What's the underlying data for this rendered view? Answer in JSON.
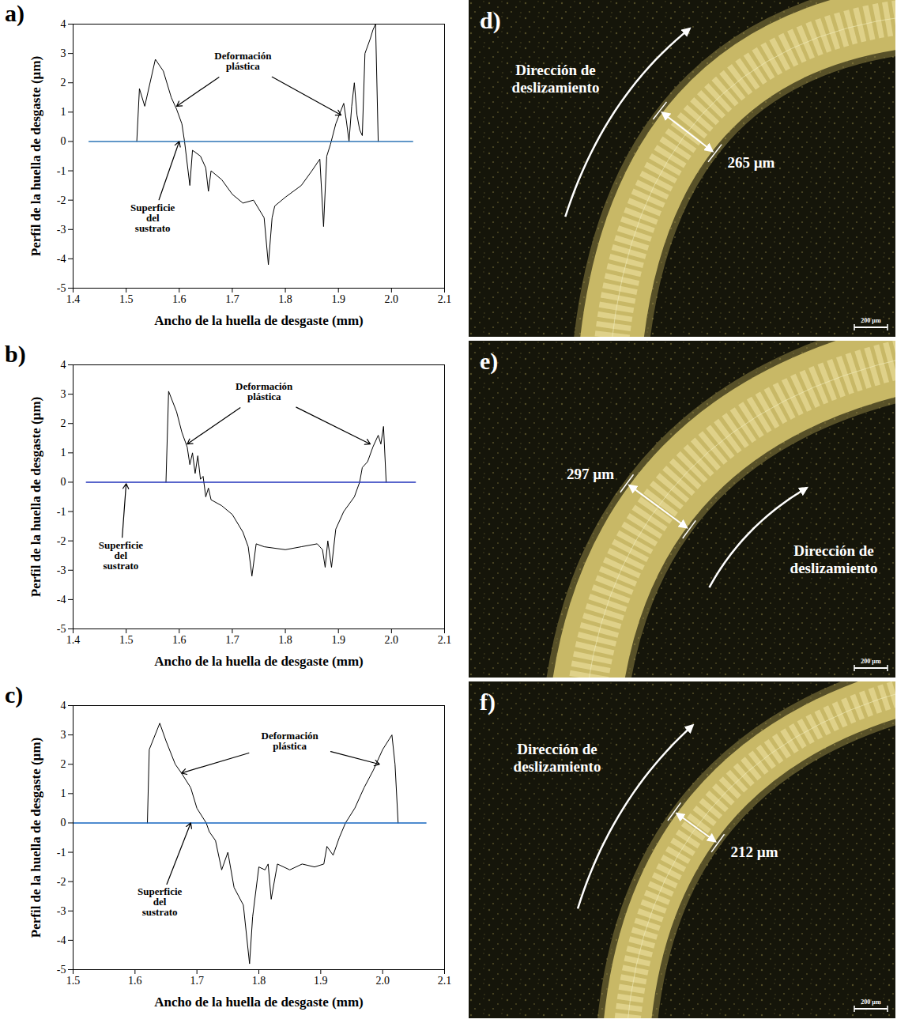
{
  "chart_data": [
    {
      "type": "line",
      "panel": "a)",
      "xlabel": "Ancho de la huella de desgaste (mm)",
      "ylabel": "Perfil de la huella de desgaste (µm)",
      "xlim": [
        1.4,
        2.1
      ],
      "xticks": [
        1.4,
        1.5,
        1.6,
        1.7,
        1.8,
        1.9,
        {
          "value": 2,
          "label": "2.0"
        },
        2.1
      ],
      "ylim": [
        -5,
        4
      ],
      "yticks": [
        -5,
        -4,
        -3,
        -2,
        -1,
        0,
        1,
        2,
        3,
        4
      ],
      "series": [
        {
          "color": "#000000",
          "line_style": "solid",
          "x": [
            1.52,
            1.525,
            1.535,
            1.555,
            1.57,
            1.585,
            1.595,
            1.605,
            1.61,
            1.62,
            1.625,
            1.64,
            1.65,
            1.655,
            1.66,
            1.68,
            1.7,
            1.72,
            1.74,
            1.76,
            1.768,
            1.775,
            1.78,
            1.8,
            1.83,
            1.85,
            1.865,
            1.872,
            1.878,
            1.885,
            1.895,
            1.91,
            1.915,
            1.92,
            1.925,
            1.93,
            1.935,
            1.94,
            1.945,
            1.95,
            1.96,
            1.965,
            1.97,
            1.975
          ],
          "values": [
            0,
            1.8,
            1.2,
            2.8,
            2.4,
            1.5,
            1.1,
            0.6,
            0,
            -1.5,
            -0.3,
            -0.5,
            -0.9,
            -1.7,
            -1.0,
            -1.3,
            -1.8,
            -2.1,
            -2.0,
            -2.6,
            -4.2,
            -2.6,
            -2.2,
            -1.9,
            -1.5,
            -1.0,
            -0.6,
            -2.9,
            -0.5,
            -0.1,
            0.6,
            1.3,
            0.7,
            0,
            1.2,
            2.0,
            0.9,
            0.4,
            0.2,
            3.0,
            3.5,
            3.8,
            4.0,
            0
          ]
        },
        {
          "color": "#2e75b6",
          "line_style": "solid",
          "x": [
            1.43,
            2.04
          ],
          "values": [
            0,
            0
          ]
        }
      ],
      "annotations": [
        {
          "text": "Deformación plástica",
          "x": 1.72,
          "y": 2.75,
          "targets": [
            [
              1.595,
              1.2
            ],
            [
              1.905,
              0.9
            ]
          ]
        },
        {
          "text": "Superficie del sustrato",
          "x": 1.55,
          "y": -2.6,
          "targets": [
            [
              1.6,
              0
            ]
          ]
        }
      ]
    },
    {
      "type": "line",
      "panel": "b)",
      "xlabel": "Ancho de la huella de desgaste (mm)",
      "ylabel": "Perfil de la huella de desgaste (µm)",
      "xlim": [
        1.4,
        2.1
      ],
      "xticks": [
        1.4,
        1.5,
        1.6,
        1.7,
        1.8,
        1.9,
        {
          "value": 2,
          "label": "2.0"
        },
        2.1
      ],
      "ylim": [
        -5,
        4
      ],
      "yticks": [
        -5,
        -4,
        -3,
        -2,
        -1,
        0,
        1,
        2,
        3,
        4
      ],
      "series": [
        {
          "color": "#000000",
          "line_style": "solid",
          "x": [
            1.575,
            1.58,
            1.595,
            1.605,
            1.615,
            1.62,
            1.625,
            1.63,
            1.635,
            1.64,
            1.645,
            1.65,
            1.655,
            1.66,
            1.68,
            1.7,
            1.72,
            1.73,
            1.737,
            1.745,
            1.76,
            1.8,
            1.83,
            1.86,
            1.87,
            1.875,
            1.88,
            1.887,
            1.895,
            1.91,
            1.93,
            1.94,
            1.945,
            1.955,
            1.965,
            1.975,
            1.98,
            1.985,
            1.99
          ],
          "values": [
            0,
            3.1,
            2.4,
            1.7,
            1.2,
            0.6,
            1.0,
            0.3,
            0.9,
            0.1,
            0.2,
            -0.5,
            -0.2,
            -0.6,
            -0.8,
            -1.1,
            -1.7,
            -2.2,
            -3.2,
            -2.1,
            -2.2,
            -2.3,
            -2.2,
            -2.1,
            -2.3,
            -2.9,
            -2.0,
            -2.9,
            -1.6,
            -1.0,
            -0.5,
            0,
            0.5,
            0.7,
            1.2,
            1.6,
            1.3,
            1.9,
            0
          ]
        },
        {
          "color": "#2233bb",
          "line_style": "solid",
          "x": [
            1.425,
            2.045
          ],
          "values": [
            0,
            0
          ]
        }
      ],
      "annotations": [
        {
          "text": "Deformación plástica",
          "x": 1.76,
          "y": 3.1,
          "targets": [
            [
              1.615,
              1.3
            ],
            [
              1.96,
              1.3
            ]
          ]
        },
        {
          "text": "Superficie del sustrato",
          "x": 1.49,
          "y": -2.5,
          "targets": [
            [
              1.5,
              -0.05
            ]
          ]
        }
      ]
    },
    {
      "type": "line",
      "panel": "c)",
      "xlabel": "Ancho de la huella de desgaste (mm)",
      "ylabel": "Perfil de la huella de desgaste (µm)",
      "xlim": [
        1.5,
        2.1
      ],
      "xticks": [
        1.5,
        1.6,
        1.7,
        1.8,
        1.9,
        {
          "value": 2,
          "label": "2.0"
        },
        2.1
      ],
      "ylim": [
        -5,
        4
      ],
      "yticks": [
        -5,
        -4,
        -3,
        -2,
        -1,
        0,
        1,
        2,
        3,
        4
      ],
      "series": [
        {
          "color": "#000000",
          "line_style": "solid",
          "x": [
            1.62,
            1.623,
            1.64,
            1.65,
            1.665,
            1.675,
            1.69,
            1.7,
            1.715,
            1.72,
            1.73,
            1.74,
            1.75,
            1.76,
            1.775,
            1.785,
            1.79,
            1.8,
            1.81,
            1.815,
            1.82,
            1.83,
            1.85,
            1.87,
            1.89,
            1.905,
            1.91,
            1.92,
            1.93,
            1.94,
            1.955,
            1.97,
            1.985,
            2.0,
            2.015,
            2.02,
            2.025
          ],
          "values": [
            0,
            2.5,
            3.4,
            2.8,
            2.0,
            1.7,
            1.2,
            0.5,
            0,
            -0.3,
            -0.6,
            -1.6,
            -1.0,
            -2.2,
            -2.8,
            -4.8,
            -3.2,
            -1.5,
            -1.6,
            -1.4,
            -2.6,
            -1.4,
            -1.6,
            -1.4,
            -1.5,
            -1.4,
            -0.8,
            -1.1,
            -0.5,
            0,
            0.5,
            1.2,
            1.8,
            2.5,
            3.0,
            2.0,
            0
          ]
        },
        {
          "color": "#1565c0",
          "line_style": "solid",
          "x": [
            1.5,
            2.07
          ],
          "values": [
            0,
            0
          ]
        }
      ],
      "annotations": [
        {
          "text": "Deformación plástica",
          "x": 1.85,
          "y": 2.8,
          "targets": [
            [
              1.675,
              1.7
            ],
            [
              1.995,
              2.0
            ]
          ]
        },
        {
          "text": "Superficie del sustrato",
          "x": 1.64,
          "y": -2.7,
          "targets": [
            [
              1.69,
              0
            ]
          ]
        }
      ]
    }
  ],
  "micrographs": [
    {
      "panel": "d)",
      "direction_label": "Dirección de deslizamiento",
      "width_label": "265 µm",
      "scale_bar_label": "200 µm"
    },
    {
      "panel": "e)",
      "direction_label": "Dirección de deslizamiento",
      "width_label": "297 µm",
      "scale_bar_label": "200 µm"
    },
    {
      "panel": "f)",
      "direction_label": "Dirección de deslizamiento",
      "width_label": "212 µm",
      "scale_bar_label": "200 µm"
    }
  ]
}
